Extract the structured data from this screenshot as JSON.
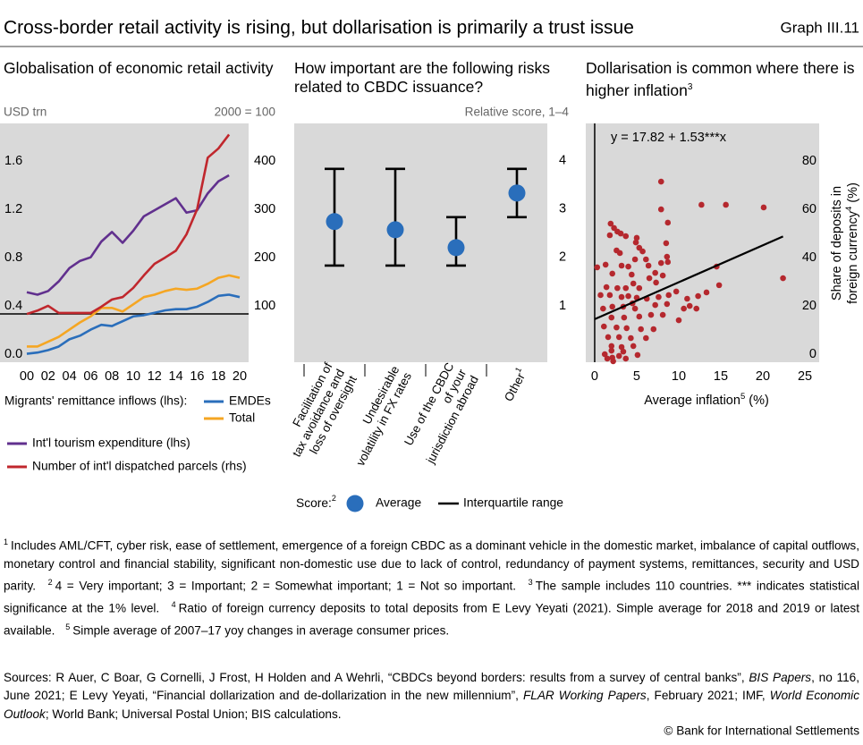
{
  "header": {
    "title": "Cross-border retail activity is rising, but dollarisation is primarily a trust issue",
    "graph_id": "Graph III.11"
  },
  "chart_data": [
    {
      "type": "line",
      "title": "Globalisation of economic retail activity",
      "y_unit_label": "USD trn",
      "y2_unit_label": "2000 = 100",
      "x": [
        2000,
        2001,
        2002,
        2003,
        2004,
        2005,
        2006,
        2007,
        2008,
        2009,
        2010,
        2011,
        2012,
        2013,
        2014,
        2015,
        2016,
        2017,
        2018,
        2019,
        2020
      ],
      "xlim": [
        1997.48,
        2020.84
      ],
      "xticks": [
        {
          "value": 2000,
          "label": "00"
        },
        {
          "value": 2002,
          "label": "02"
        },
        {
          "value": 2004,
          "label": "04"
        },
        {
          "value": 2006,
          "label": "06"
        },
        {
          "value": 2008,
          "label": "08"
        },
        {
          "value": 2010,
          "label": "10"
        },
        {
          "value": 2012,
          "label": "12"
        },
        {
          "value": 2014,
          "label": "14"
        },
        {
          "value": 2016,
          "label": "16"
        },
        {
          "value": 2018,
          "label": "18"
        },
        {
          "value": 2020,
          "label": "20"
        }
      ],
      "ylim": [
        0,
        1.98
      ],
      "yticks": [
        {
          "value": 0,
          "label": "0.0"
        },
        0.4,
        0.8,
        1.2,
        1.6
      ],
      "y2lim": [
        0,
        495
      ],
      "y2ticks": [
        100,
        200,
        300,
        400
      ],
      "y2_reference_line": 100,
      "legend_group_title": "Migrants' remittance inflows (lhs):",
      "series": [
        {
          "name": "EMDEs",
          "color": "#2a6ebb",
          "values": [
            0.07,
            0.08,
            0.1,
            0.13,
            0.19,
            0.22,
            0.27,
            0.31,
            0.3,
            0.34,
            0.38,
            0.39,
            0.41,
            0.43,
            0.44,
            0.44,
            0.46,
            0.5,
            0.55,
            0.56,
            0.54
          ]
        },
        {
          "name": "Total",
          "color": "#f5a623",
          "values": [
            0.13,
            0.13,
            0.17,
            0.21,
            0.27,
            0.33,
            0.38,
            0.45,
            0.45,
            0.42,
            0.48,
            0.54,
            0.56,
            0.59,
            0.61,
            0.6,
            0.61,
            0.65,
            0.7,
            0.72,
            0.7
          ]
        },
        {
          "name": "Int'l tourism expenditure (lhs)",
          "color": "#61308e",
          "values": [
            0.58,
            0.56,
            0.59,
            0.67,
            0.78,
            0.84,
            0.87,
            1.0,
            1.08,
            0.99,
            1.09,
            1.21,
            1.26,
            1.31,
            1.36,
            1.24,
            1.26,
            1.4,
            1.5,
            1.55,
            null
          ]
        },
        {
          "name": "Number of int'l dispatched parcels (rhs)",
          "color": "#c0272d",
          "axis": "y2",
          "values": [
            100,
            107,
            117,
            102,
            102,
            102,
            102,
            115,
            130,
            135,
            154,
            180,
            204,
            217,
            231,
            265,
            317,
            424,
            443,
            472,
            null
          ]
        }
      ]
    },
    {
      "type": "dot_range",
      "title": "How important are the following risks related to CBDC issuance?",
      "y_unit_label": "Relative score, 1–4",
      "categories": [
        [
          "Facilitation of",
          "tax avoidance and",
          "loss of oversight"
        ],
        [
          "Undesirable",
          "volatility in FX rates"
        ],
        [
          "Use of the CBDC",
          "of your",
          "jurisdiction abroad"
        ],
        [
          "Other"
        ]
      ],
      "category_notes": {
        "3": "1"
      },
      "values": [
        2.91,
        2.74,
        2.37,
        3.5
      ],
      "iqr_low": [
        2,
        2,
        2,
        3
      ],
      "iqr_high": [
        4,
        4,
        3,
        4
      ],
      "color": "#2a6ebb",
      "ylim": [
        0,
        4.94
      ],
      "yticks": [
        1,
        2,
        3,
        4
      ],
      "legend_title": "Score:",
      "legend_title_note": "2",
      "legend_average": "Average",
      "legend_range": "Interquartile range"
    },
    {
      "type": "scatter",
      "title": "Dollarisation is common where there is higher inflation",
      "title_note": "3",
      "annotation": "y = 17.82 + 1.53***x",
      "fit": {
        "intercept": 17.82,
        "slope": 1.53,
        "x_range": [
          0,
          22.4
        ]
      },
      "x_reference_line": 0,
      "x_label": {
        "text": "Average inflation",
        "note": "5",
        "unit": "(%)"
      },
      "y_label": {
        "lines": [
          "Share of deposits in",
          "foreign currency"
        ],
        "note": "4",
        "unit": "(%)"
      },
      "xlim": [
        -1.06,
        26.7
      ],
      "xticks": [
        0,
        5,
        10,
        15,
        20,
        25
      ],
      "ylim": [
        0,
        98.9
      ],
      "yticks": [
        0,
        20,
        40,
        60,
        80
      ],
      "color": "#b5282e",
      "x": [
        0.3,
        1.3,
        2.1,
        1.9,
        2.3,
        2.7,
        1.8,
        3.1,
        3.7,
        3.0,
        3.2,
        4.0,
        4.9,
        5.0,
        5.3,
        5.7,
        4.8,
        4.4,
        6.1,
        7.9,
        8.7,
        8.5,
        8.6,
        8.7,
        7.9,
        6.4,
        7.2,
        6.5,
        4.6,
        5.3,
        3.7,
        2.7,
        1.4,
        0.7,
        1.8,
        3.2,
        4.0,
        5.0,
        6.2,
        7.6,
        8.8,
        9.7,
        11.0,
        12.3,
        13.3,
        14.5,
        12.7,
        20.1,
        22.4,
        4.5,
        3.4,
        2.1,
        1.0,
        2.0,
        3.5,
        5.3,
        6.7,
        8.1,
        10.0,
        1.1,
        2.6,
        3.8,
        5.5,
        7.0,
        1.6,
        2.9,
        4.3,
        6.1,
        2.0,
        3.2,
        4.6,
        2.0,
        3.4,
        1.2,
        2.1,
        2.9,
        1.5,
        3.7,
        5.1,
        2.2,
        4.8,
        7.2,
        8.6,
        11.3,
        12.1,
        14.8,
        2.6,
        8.1,
        7.3,
        7.9,
        15.6,
        10.6
      ],
      "values": [
        39.3,
        40.4,
        36.7,
        57.4,
        55.6,
        54.1,
        52.6,
        53.3,
        52.2,
        45.2,
        40.0,
        39.6,
        49.6,
        51.5,
        47.4,
        45.9,
        42.6,
        36.3,
        42.6,
        63.3,
        57.8,
        49.3,
        43.7,
        41.5,
        41.1,
        40.0,
        37.0,
        34.8,
        32.6,
        30.7,
        30.7,
        30.7,
        31.1,
        27.8,
        27.8,
        27.0,
        27.4,
        26.7,
        26.3,
        27.0,
        27.8,
        29.3,
        26.3,
        27.4,
        28.9,
        39.6,
        65.2,
        64.1,
        34.8,
        24.4,
        23.0,
        23.0,
        22.2,
        18.5,
        18.5,
        18.9,
        19.6,
        19.6,
        17.4,
        14.8,
        14.4,
        14.1,
        13.7,
        13.7,
        10.4,
        10.4,
        10.0,
        10.0,
        6.7,
        6.3,
        6.7,
        4.8,
        4.4,
        3.3,
        1.9,
        2.6,
        1.5,
        1.5,
        3.0,
        0.4,
        22.2,
        23.7,
        24.1,
        23.3,
        22.2,
        31.9,
        46.3,
        35.9,
        33.0,
        74.8,
        65.2,
        22.2
      ]
    }
  ],
  "footnotes": [
    {
      "marker": "1",
      "text": "Includes AML/CFT, cyber risk, ease of settlement, emergence of a foreign CBDC as a dominant vehicle in the domestic market, imbalance of capital outflows, monetary control and financial stability, significant non-domestic use due to lack of control, redundancy of payment systems, remittances, security and USD parity."
    },
    {
      "marker": "2",
      "text": "4 = Very important; 3 = Important; 2 = Somewhat important; 1 = Not so important."
    },
    {
      "marker": "3",
      "text": "The sample includes 110 countries. *** indicates statistical significance at the 1% level."
    },
    {
      "marker": "4",
      "text": "Ratio of foreign currency deposits to total deposits from E Levy Yeyati (2021). Simple average for 2018 and 2019 or latest available."
    },
    {
      "marker": "5",
      "text": "Simple average of 2007–17 yoy changes in average consumer prices."
    }
  ],
  "sources": [
    {
      "text": "Sources: R Auer, C Boar, G Cornelli, J Frost, H Holden and A Wehrli, “CBDCs beyond borders: results from a survey of central banks”, ",
      "italic": false
    },
    {
      "text": "BIS Papers",
      "italic": true
    },
    {
      "text": ", no 116, June 2021; E Levy Yeyati, “Financial dollarization and de-dollarization in the new millennium”, ",
      "italic": false
    },
    {
      "text": "FLAR Working Papers",
      "italic": true
    },
    {
      "text": ", February 2021; IMF, ",
      "italic": false
    },
    {
      "text": "World Economic Outlook",
      "italic": true
    },
    {
      "text": "; World Bank; Universal Postal Union; BIS calculations.",
      "italic": false
    }
  ],
  "copyright": "© Bank for International Settlements"
}
